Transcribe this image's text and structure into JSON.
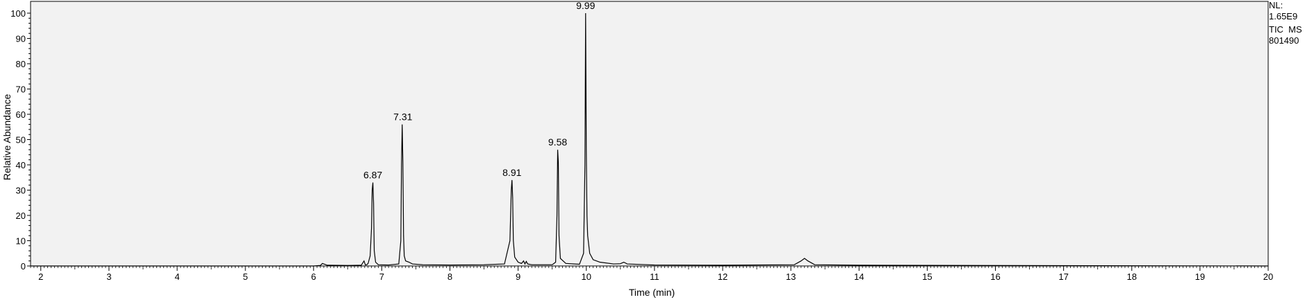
{
  "chart_data": {
    "type": "line",
    "title": "",
    "xlabel": "Time (min)",
    "ylabel": "Relative Abundance",
    "xlim": [
      1.85,
      20
    ],
    "ylim": [
      0,
      100
    ],
    "x_ticks": [
      2,
      3,
      4,
      5,
      6,
      7,
      8,
      9,
      10,
      11,
      12,
      13,
      14,
      15,
      16,
      17,
      18,
      19,
      20
    ],
    "y_ticks": [
      0,
      10,
      20,
      30,
      40,
      50,
      60,
      70,
      80,
      90,
      100
    ],
    "grid": false,
    "line_color": "#000000",
    "plot_background": "#f2f2f2",
    "info": [
      "NL:",
      "1.65E9",
      "TIC  MS",
      "801490"
    ],
    "peak_labels": [
      {
        "x": 6.87,
        "label": "6.87"
      },
      {
        "x": 7.31,
        "label": "7.31"
      },
      {
        "x": 8.91,
        "label": "8.91"
      },
      {
        "x": 9.58,
        "label": "9.58"
      },
      {
        "x": 9.99,
        "label": "9.99"
      }
    ],
    "series": [
      {
        "x": [
          1.85,
          6.0,
          6.1,
          6.13,
          6.2,
          6.5,
          6.7,
          6.74,
          6.76,
          6.78,
          6.8,
          6.83,
          6.85,
          6.86,
          6.87,
          6.88,
          6.89,
          6.91,
          6.95,
          7.1,
          7.25,
          7.28,
          7.29,
          7.3,
          7.31,
          7.32,
          7.33,
          7.35,
          7.4,
          7.45,
          7.6,
          8.0,
          8.5,
          8.8,
          8.88,
          8.9,
          8.91,
          8.92,
          8.93,
          8.95,
          9.0,
          9.05,
          9.08,
          9.1,
          9.12,
          9.14,
          9.2,
          9.5,
          9.55,
          9.57,
          9.58,
          9.59,
          9.6,
          9.62,
          9.7,
          9.9,
          9.96,
          9.98,
          9.99,
          10.0,
          10.01,
          10.02,
          10.05,
          10.1,
          10.2,
          10.4,
          10.5,
          10.55,
          10.6,
          11.0,
          12.0,
          13.05,
          13.15,
          13.2,
          13.25,
          13.35,
          14.0,
          20.0
        ],
        "y": [
          0,
          0,
          0.2,
          1.0,
          0.3,
          0.2,
          0.3,
          2.0,
          0.4,
          0.5,
          1.0,
          4.0,
          15.0,
          30.0,
          33.0,
          25.0,
          6.0,
          1.5,
          0.5,
          0.4,
          0.8,
          10.0,
          40.0,
          56.0,
          41.0,
          12.0,
          4.0,
          2.0,
          1.5,
          0.8,
          0.5,
          0.4,
          0.5,
          0.8,
          10.0,
          30.0,
          34.0,
          27.0,
          10.0,
          3.5,
          1.5,
          1.0,
          2.0,
          0.8,
          1.8,
          0.8,
          0.5,
          0.5,
          1.5,
          20.0,
          46.0,
          41.0,
          12.0,
          3.0,
          1.0,
          0.7,
          5.0,
          40.0,
          100.0,
          46.0,
          20.0,
          12.0,
          5.0,
          2.5,
          1.5,
          0.8,
          0.9,
          1.5,
          0.8,
          0.4,
          0.3,
          0.5,
          2.0,
          3.0,
          2.0,
          0.5,
          0.3,
          0
        ]
      }
    ]
  }
}
